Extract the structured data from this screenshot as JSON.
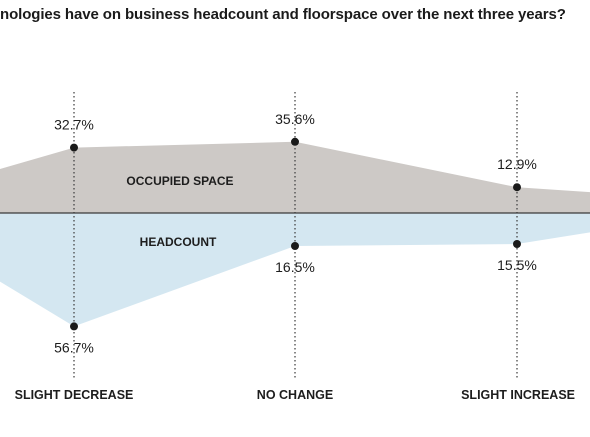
{
  "title": "nologies have on business headcount and floorspace over the next three years?",
  "chart_data": {
    "type": "area",
    "title": "nologies have on business headcount and floorspace over the next three years?",
    "categories": [
      "SLIGHT DECREASE",
      "NO CHANGE",
      "SLIGHT INCREASE"
    ],
    "series": [
      {
        "name": "OCCUPIED SPACE",
        "values": [
          32.7,
          35.6,
          12.9
        ],
        "labels": [
          "32.7%",
          "35.6%",
          "12.9%"
        ],
        "color": "#cdc9c6",
        "direction": "up"
      },
      {
        "name": "HEADCOUNT",
        "values": [
          56.7,
          16.5,
          15.5
        ],
        "labels": [
          "56.7%",
          "16.5%",
          "15.5%"
        ],
        "color": "#d4e7f1",
        "direction": "down"
      }
    ],
    "ylim": [
      0,
      60
    ],
    "grid": false,
    "legend": "inline",
    "baseline_color": "#3a3a3a"
  }
}
